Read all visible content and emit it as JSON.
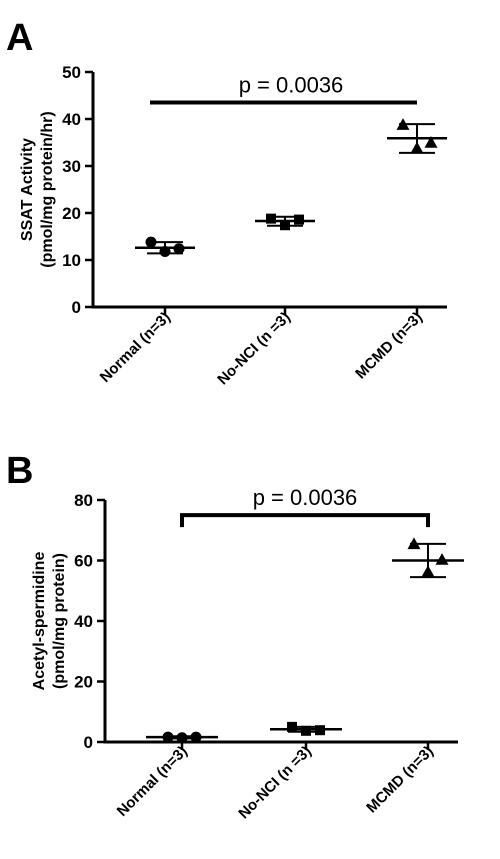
{
  "chart_data": [
    {
      "panel": "A",
      "type": "scatter",
      "categories": [
        "Normal (n=3)",
        "No-NCI (n =3)",
        "MCMD (n=3)"
      ],
      "markers": [
        "circle",
        "square",
        "triangle"
      ],
      "ylabel": [
        "SSAT Activity",
        "(pmol/mg protein/hr)"
      ],
      "ylim": [
        0,
        50
      ],
      "yticks": [
        0,
        10,
        20,
        30,
        40,
        50
      ],
      "series": [
        {
          "category": "Normal (n=3)",
          "points": [
            13.8,
            11.8,
            12.4
          ],
          "mean": 12.6,
          "sd": [
            11.4,
            13.8
          ]
        },
        {
          "category": "No-NCI (n =3)",
          "points": [
            18.8,
            17.4,
            18.6
          ],
          "mean": 18.3,
          "sd": [
            17.3,
            19.2
          ]
        },
        {
          "category": "MCMD (n=3)",
          "points": [
            38.8,
            33.8,
            35.0
          ],
          "mean": 35.9,
          "sd": [
            32.8,
            38.9
          ]
        }
      ],
      "annotation": {
        "text": "p = 0.0036",
        "from": "Normal (n=3)",
        "to": "MCMD (n=3)",
        "at": 43.5
      }
    },
    {
      "panel": "B",
      "type": "scatter",
      "categories": [
        "Normal (n=3)",
        "No-NCI (n =3)",
        "MCMD (n=3)"
      ],
      "markers": [
        "circle",
        "square",
        "triangle"
      ],
      "ylabel": [
        "Acetyl-spermidine",
        "(pmol/mg protein)"
      ],
      "ylim": [
        0,
        80
      ],
      "yticks": [
        0,
        20,
        40,
        60,
        80
      ],
      "series": [
        {
          "category": "Normal (n=3)",
          "points": [
            1.6,
            1.4,
            1.6
          ],
          "mean": 1.6,
          "sd": [
            1.2,
            1.9
          ]
        },
        {
          "category": "No-NCI (n =3)",
          "points": [
            5.0,
            3.7,
            3.9
          ],
          "mean": 4.2,
          "sd": [
            3.4,
            5.0
          ]
        },
        {
          "category": "MCMD (n=3)",
          "points": [
            65.5,
            56.3,
            60.3
          ],
          "mean": 60.0,
          "sd": [
            54.5,
            65.5
          ]
        }
      ],
      "annotation": {
        "text": "p = 0.0036",
        "from": "Normal (n=3)",
        "to": "MCMD (n=3)",
        "at": 75
      }
    }
  ]
}
